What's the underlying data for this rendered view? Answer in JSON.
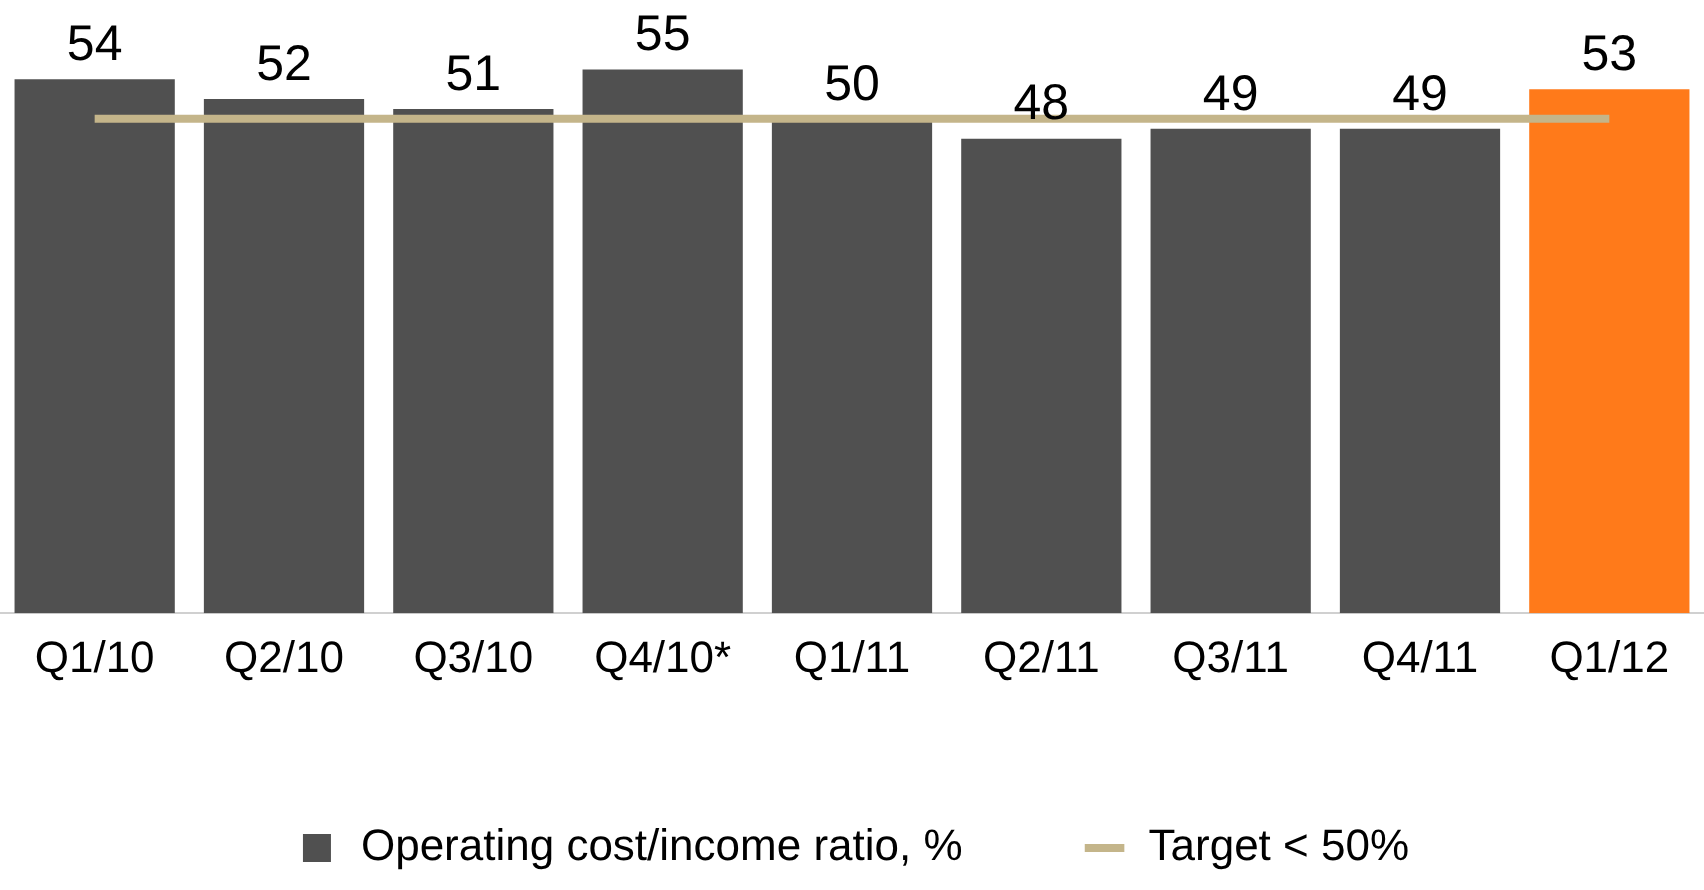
{
  "chart_data": {
    "type": "bar",
    "categories": [
      "Q1/10",
      "Q2/10",
      "Q3/10",
      "Q4/10*",
      "Q1/11",
      "Q2/11",
      "Q3/11",
      "Q4/11",
      "Q1/12"
    ],
    "series": [
      {
        "name": "Operating cost/income ratio, %",
        "color": "#505050",
        "colors": [
          "#505050",
          "#505050",
          "#505050",
          "#505050",
          "#505050",
          "#505050",
          "#505050",
          "#505050",
          "#ff7a1a"
        ],
        "values": [
          54,
          52,
          51,
          55,
          50,
          48,
          49,
          49,
          53
        ]
      }
    ],
    "ref_lines": [
      {
        "axis": "y",
        "value": 50,
        "label": "Target < 50%",
        "color": "#c4b58a"
      }
    ],
    "tick_labels": "x",
    "data_labels": true,
    "grid": false,
    "legend": "bottom"
  }
}
